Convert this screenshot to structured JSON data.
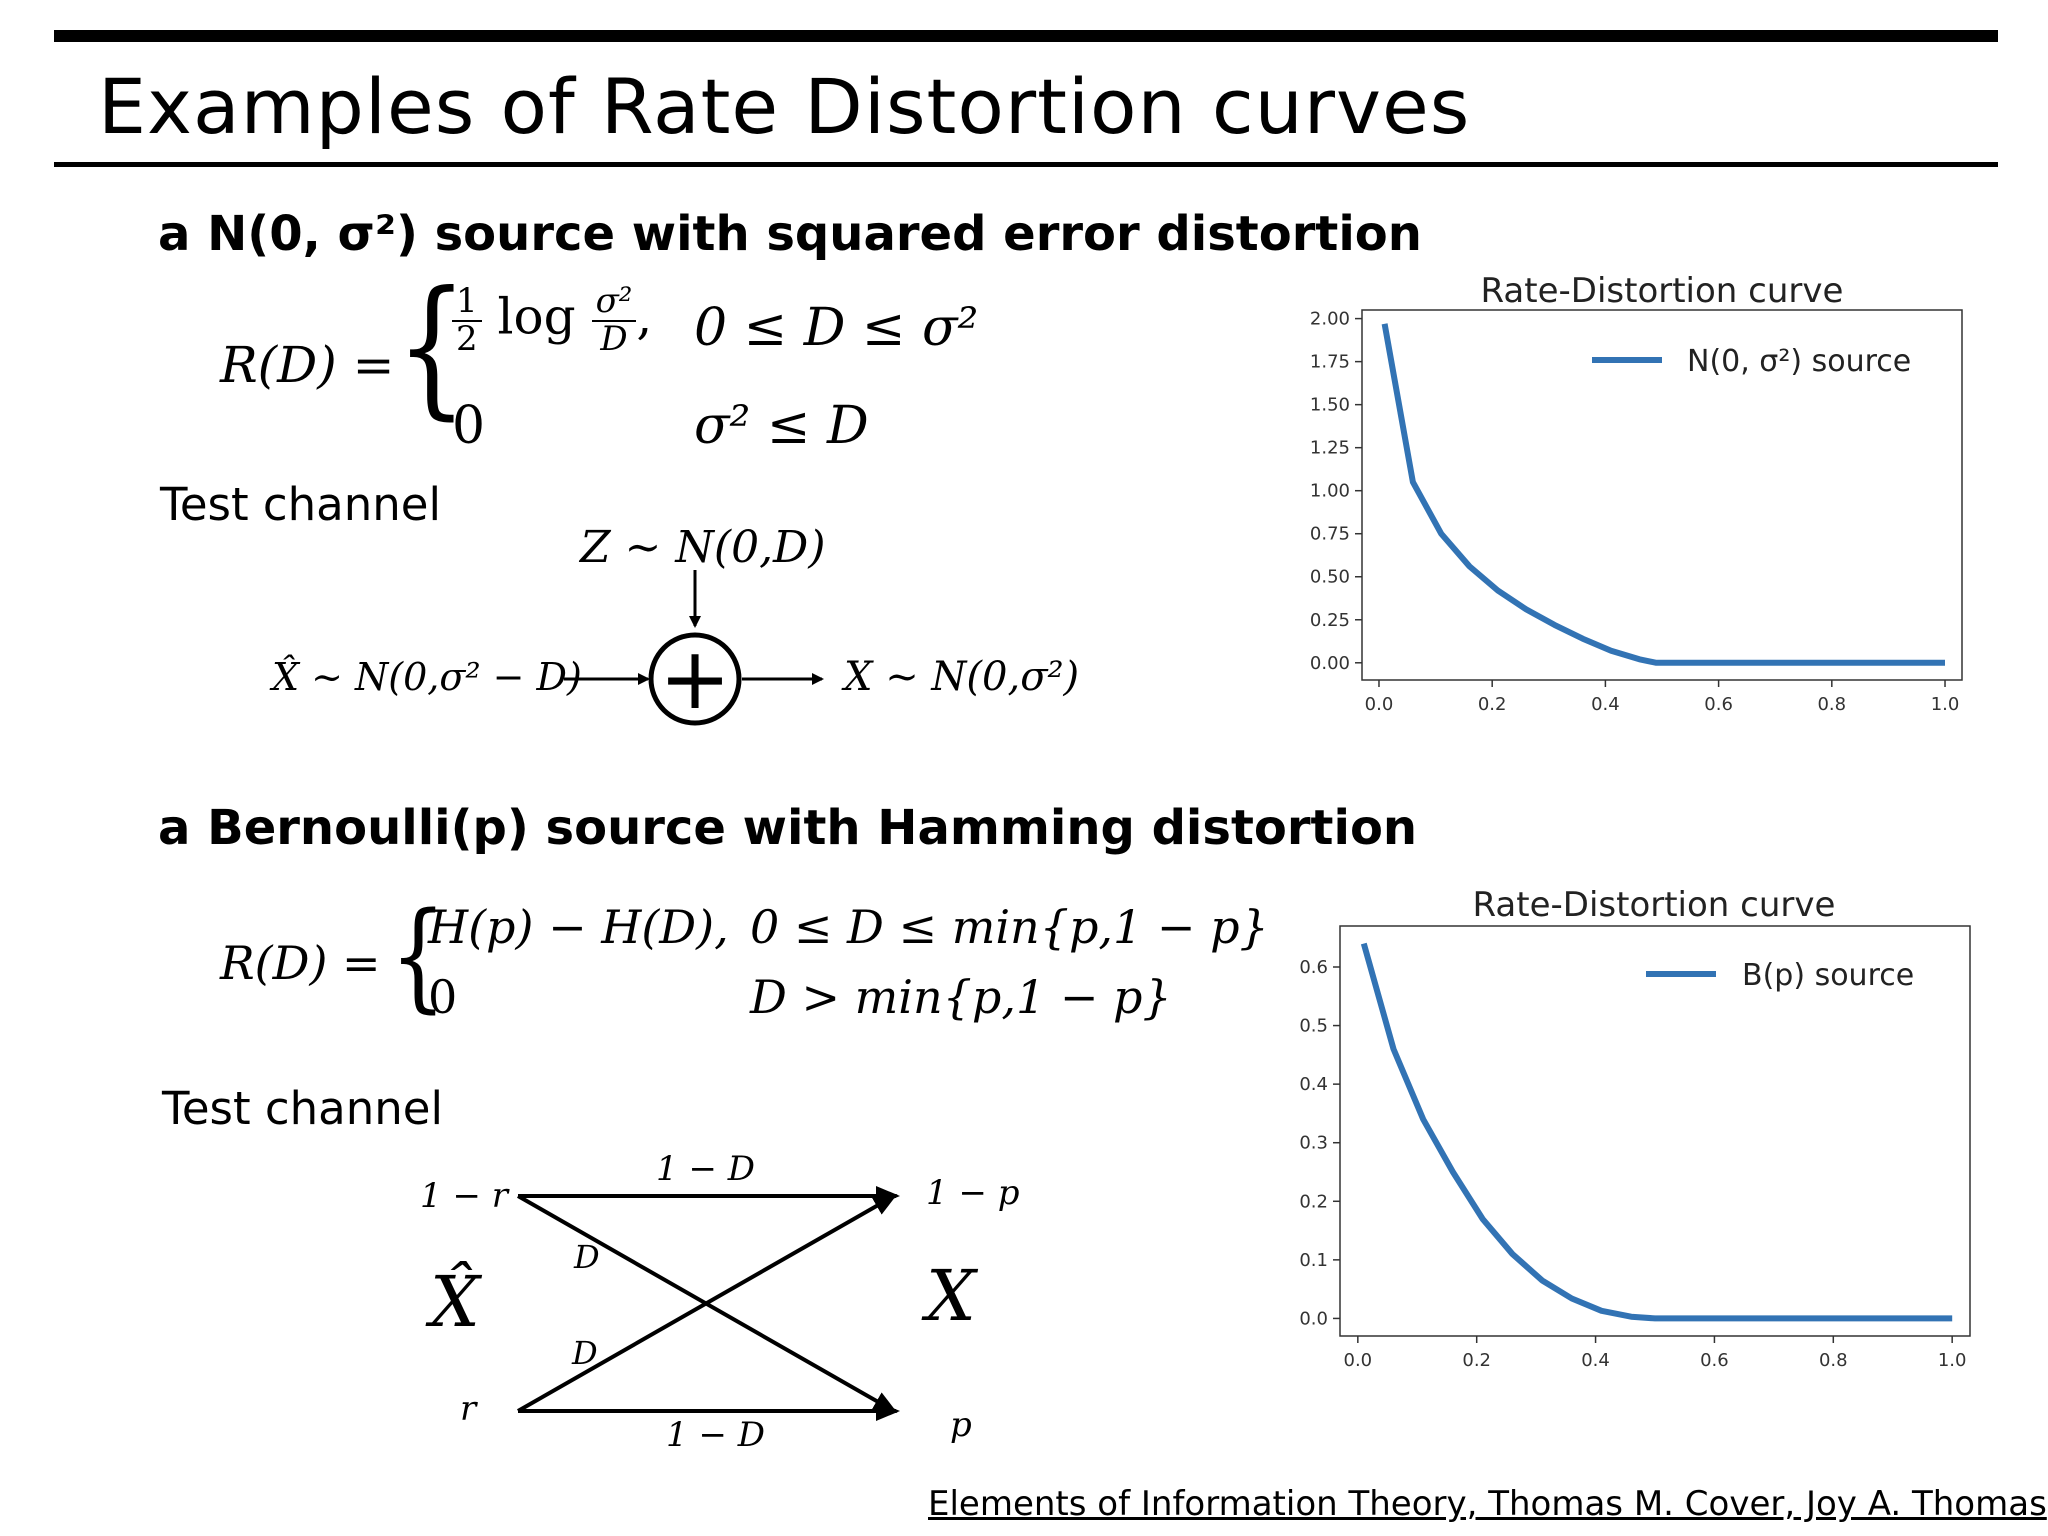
{
  "slide": {
    "title": "Examples of Rate Distortion curves",
    "gauss_heading": "a N(0, σ²) source with squared error distortion",
    "bern_heading": "a Bernoulli(p) source with Hamming distortion",
    "test_channel_label": "Test channel",
    "citation": "Elements of Information Theory, Thomas M. Cover, Joy A. Thomas"
  },
  "gauss_formula": {
    "lhs": "R(D) =",
    "case1_half_num": "1",
    "case1_half_den": "2",
    "case1_log": "log",
    "case1_frac_num": "σ²",
    "case1_frac_den": "D",
    "case1_comma": ",",
    "case1_cond": "0 ≤ D ≤ σ²",
    "case2_value": "0",
    "case2_cond": "σ² ≤ D"
  },
  "gauss_channel": {
    "noise": "Z ~ N(0,D)",
    "input": "X̂ ~ N(0,σ² − D)",
    "output": "X ~ N(0,σ²)",
    "adder_symbol": "+"
  },
  "bern_formula": {
    "lhs": "R(D) =",
    "case1_value": "H(p) − H(D),",
    "case1_cond": "0 ≤ D ≤ min{p,1 − p}",
    "case2_value": "0",
    "case2_cond": "D > min{p,1 − p}"
  },
  "bern_channel": {
    "top_left": "1 − r",
    "bottom_left": "r",
    "top_right": "1 − p",
    "bottom_right": "p",
    "x_hat": "X̂",
    "x": "X",
    "top_edge": "1 − D",
    "bottom_edge": "1 − D",
    "cross_upper": "D",
    "cross_lower": "D"
  },
  "chart_data": [
    {
      "type": "line",
      "title": "Rate-Distortion curve",
      "xlim": [
        -0.03,
        1.03
      ],
      "ylim": [
        -0.1,
        2.05
      ],
      "xticks": [
        "0.0",
        "0.2",
        "0.4",
        "0.6",
        "0.8",
        "1.0"
      ],
      "xtick_values": [
        0,
        0.2,
        0.4,
        0.6,
        0.8,
        1.0
      ],
      "yticks": [
        "0.00",
        "0.25",
        "0.50",
        "0.75",
        "1.00",
        "1.25",
        "1.50",
        "1.75",
        "2.00"
      ],
      "ytick_values": [
        0,
        0.25,
        0.5,
        0.75,
        1.0,
        1.25,
        1.5,
        1.75,
        2.0
      ],
      "legend_position": "top-right",
      "color": "#3273b4",
      "series": [
        {
          "name": "N(0, σ²) source",
          "x": [
            0.01,
            0.06,
            0.11,
            0.16,
            0.21,
            0.26,
            0.31,
            0.36,
            0.41,
            0.46,
            0.49,
            0.52,
            0.6,
            0.8,
            1.0
          ],
          "y": [
            1.97,
            1.05,
            0.75,
            0.56,
            0.42,
            0.31,
            0.22,
            0.14,
            0.07,
            0.02,
            0.0,
            0.0,
            0.0,
            0.0,
            0.0
          ]
        }
      ]
    },
    {
      "type": "line",
      "title": "Rate-Distortion curve",
      "xlim": [
        -0.03,
        1.03
      ],
      "ylim": [
        -0.03,
        0.67
      ],
      "xticks": [
        "0.0",
        "0.2",
        "0.4",
        "0.6",
        "0.8",
        "1.0"
      ],
      "xtick_values": [
        0,
        0.2,
        0.4,
        0.6,
        0.8,
        1.0
      ],
      "yticks": [
        "0.0",
        "0.1",
        "0.2",
        "0.3",
        "0.4",
        "0.5",
        "0.6"
      ],
      "ytick_values": [
        0,
        0.1,
        0.2,
        0.3,
        0.4,
        0.5,
        0.6
      ],
      "legend_position": "top-right",
      "color": "#3273b4",
      "series": [
        {
          "name": "B(p) source",
          "x": [
            0.01,
            0.06,
            0.11,
            0.16,
            0.21,
            0.26,
            0.31,
            0.36,
            0.41,
            0.46,
            0.5,
            0.6,
            0.8,
            1.0
          ],
          "y": [
            0.64,
            0.46,
            0.34,
            0.25,
            0.17,
            0.11,
            0.065,
            0.034,
            0.013,
            0.003,
            0.0,
            0.0,
            0.0,
            0.0
          ]
        }
      ]
    }
  ]
}
